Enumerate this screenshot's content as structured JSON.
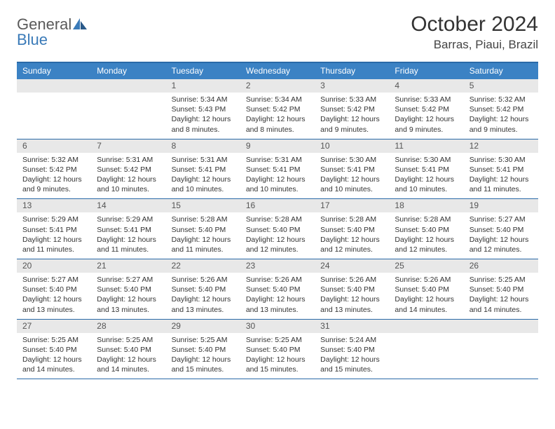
{
  "brand": {
    "word1": "General",
    "word2": "Blue"
  },
  "title": "October 2024",
  "location": "Barras, Piaui, Brazil",
  "colors": {
    "header_bar": "#3b82c4",
    "border": "#2a6aa8",
    "daynum_bg": "#e8e8e8",
    "text": "#333333",
    "brand_gray": "#5a5a5a",
    "brand_blue": "#3a7ab8"
  },
  "weekdays": [
    "Sunday",
    "Monday",
    "Tuesday",
    "Wednesday",
    "Thursday",
    "Friday",
    "Saturday"
  ],
  "weeks": [
    [
      null,
      null,
      {
        "n": "1",
        "sr": "Sunrise: 5:34 AM",
        "ss": "Sunset: 5:43 PM",
        "dl": "Daylight: 12 hours and 8 minutes."
      },
      {
        "n": "2",
        "sr": "Sunrise: 5:34 AM",
        "ss": "Sunset: 5:42 PM",
        "dl": "Daylight: 12 hours and 8 minutes."
      },
      {
        "n": "3",
        "sr": "Sunrise: 5:33 AM",
        "ss": "Sunset: 5:42 PM",
        "dl": "Daylight: 12 hours and 9 minutes."
      },
      {
        "n": "4",
        "sr": "Sunrise: 5:33 AM",
        "ss": "Sunset: 5:42 PM",
        "dl": "Daylight: 12 hours and 9 minutes."
      },
      {
        "n": "5",
        "sr": "Sunrise: 5:32 AM",
        "ss": "Sunset: 5:42 PM",
        "dl": "Daylight: 12 hours and 9 minutes."
      }
    ],
    [
      {
        "n": "6",
        "sr": "Sunrise: 5:32 AM",
        "ss": "Sunset: 5:42 PM",
        "dl": "Daylight: 12 hours and 9 minutes."
      },
      {
        "n": "7",
        "sr": "Sunrise: 5:31 AM",
        "ss": "Sunset: 5:42 PM",
        "dl": "Daylight: 12 hours and 10 minutes."
      },
      {
        "n": "8",
        "sr": "Sunrise: 5:31 AM",
        "ss": "Sunset: 5:41 PM",
        "dl": "Daylight: 12 hours and 10 minutes."
      },
      {
        "n": "9",
        "sr": "Sunrise: 5:31 AM",
        "ss": "Sunset: 5:41 PM",
        "dl": "Daylight: 12 hours and 10 minutes."
      },
      {
        "n": "10",
        "sr": "Sunrise: 5:30 AM",
        "ss": "Sunset: 5:41 PM",
        "dl": "Daylight: 12 hours and 10 minutes."
      },
      {
        "n": "11",
        "sr": "Sunrise: 5:30 AM",
        "ss": "Sunset: 5:41 PM",
        "dl": "Daylight: 12 hours and 10 minutes."
      },
      {
        "n": "12",
        "sr": "Sunrise: 5:30 AM",
        "ss": "Sunset: 5:41 PM",
        "dl": "Daylight: 12 hours and 11 minutes."
      }
    ],
    [
      {
        "n": "13",
        "sr": "Sunrise: 5:29 AM",
        "ss": "Sunset: 5:41 PM",
        "dl": "Daylight: 12 hours and 11 minutes."
      },
      {
        "n": "14",
        "sr": "Sunrise: 5:29 AM",
        "ss": "Sunset: 5:41 PM",
        "dl": "Daylight: 12 hours and 11 minutes."
      },
      {
        "n": "15",
        "sr": "Sunrise: 5:28 AM",
        "ss": "Sunset: 5:40 PM",
        "dl": "Daylight: 12 hours and 11 minutes."
      },
      {
        "n": "16",
        "sr": "Sunrise: 5:28 AM",
        "ss": "Sunset: 5:40 PM",
        "dl": "Daylight: 12 hours and 12 minutes."
      },
      {
        "n": "17",
        "sr": "Sunrise: 5:28 AM",
        "ss": "Sunset: 5:40 PM",
        "dl": "Daylight: 12 hours and 12 minutes."
      },
      {
        "n": "18",
        "sr": "Sunrise: 5:28 AM",
        "ss": "Sunset: 5:40 PM",
        "dl": "Daylight: 12 hours and 12 minutes."
      },
      {
        "n": "19",
        "sr": "Sunrise: 5:27 AM",
        "ss": "Sunset: 5:40 PM",
        "dl": "Daylight: 12 hours and 12 minutes."
      }
    ],
    [
      {
        "n": "20",
        "sr": "Sunrise: 5:27 AM",
        "ss": "Sunset: 5:40 PM",
        "dl": "Daylight: 12 hours and 13 minutes."
      },
      {
        "n": "21",
        "sr": "Sunrise: 5:27 AM",
        "ss": "Sunset: 5:40 PM",
        "dl": "Daylight: 12 hours and 13 minutes."
      },
      {
        "n": "22",
        "sr": "Sunrise: 5:26 AM",
        "ss": "Sunset: 5:40 PM",
        "dl": "Daylight: 12 hours and 13 minutes."
      },
      {
        "n": "23",
        "sr": "Sunrise: 5:26 AM",
        "ss": "Sunset: 5:40 PM",
        "dl": "Daylight: 12 hours and 13 minutes."
      },
      {
        "n": "24",
        "sr": "Sunrise: 5:26 AM",
        "ss": "Sunset: 5:40 PM",
        "dl": "Daylight: 12 hours and 13 minutes."
      },
      {
        "n": "25",
        "sr": "Sunrise: 5:26 AM",
        "ss": "Sunset: 5:40 PM",
        "dl": "Daylight: 12 hours and 14 minutes."
      },
      {
        "n": "26",
        "sr": "Sunrise: 5:25 AM",
        "ss": "Sunset: 5:40 PM",
        "dl": "Daylight: 12 hours and 14 minutes."
      }
    ],
    [
      {
        "n": "27",
        "sr": "Sunrise: 5:25 AM",
        "ss": "Sunset: 5:40 PM",
        "dl": "Daylight: 12 hours and 14 minutes."
      },
      {
        "n": "28",
        "sr": "Sunrise: 5:25 AM",
        "ss": "Sunset: 5:40 PM",
        "dl": "Daylight: 12 hours and 14 minutes."
      },
      {
        "n": "29",
        "sr": "Sunrise: 5:25 AM",
        "ss": "Sunset: 5:40 PM",
        "dl": "Daylight: 12 hours and 15 minutes."
      },
      {
        "n": "30",
        "sr": "Sunrise: 5:25 AM",
        "ss": "Sunset: 5:40 PM",
        "dl": "Daylight: 12 hours and 15 minutes."
      },
      {
        "n": "31",
        "sr": "Sunrise: 5:24 AM",
        "ss": "Sunset: 5:40 PM",
        "dl": "Daylight: 12 hours and 15 minutes."
      },
      null,
      null
    ]
  ]
}
